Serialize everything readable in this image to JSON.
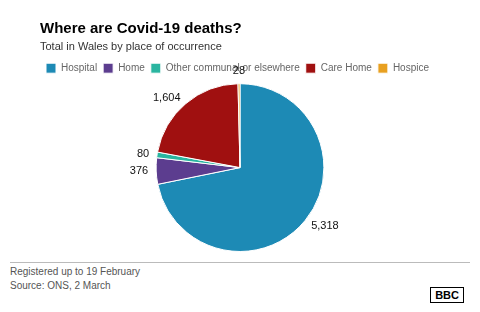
{
  "chart_data": {
    "type": "pie",
    "title": "Where are Covid-19 deaths?",
    "subtitle": "Total in Wales by place of occurrence",
    "categories": [
      "Hospital",
      "Home",
      "Other communal or elsewhere",
      "Care Home",
      "Hospice"
    ],
    "values": [
      5318,
      376,
      80,
      1604,
      28
    ],
    "value_labels": [
      "5,318",
      "376",
      "80",
      "1,604",
      "28"
    ],
    "colors": [
      "#1d8ab5",
      "#5c3d8f",
      "#2ab5a0",
      "#a01010",
      "#e8a020"
    ],
    "data_labels": true,
    "legend": "top",
    "annotations": [
      "Registered up to 19 February",
      "Source: ONS, 2 March",
      "BBC"
    ]
  }
}
